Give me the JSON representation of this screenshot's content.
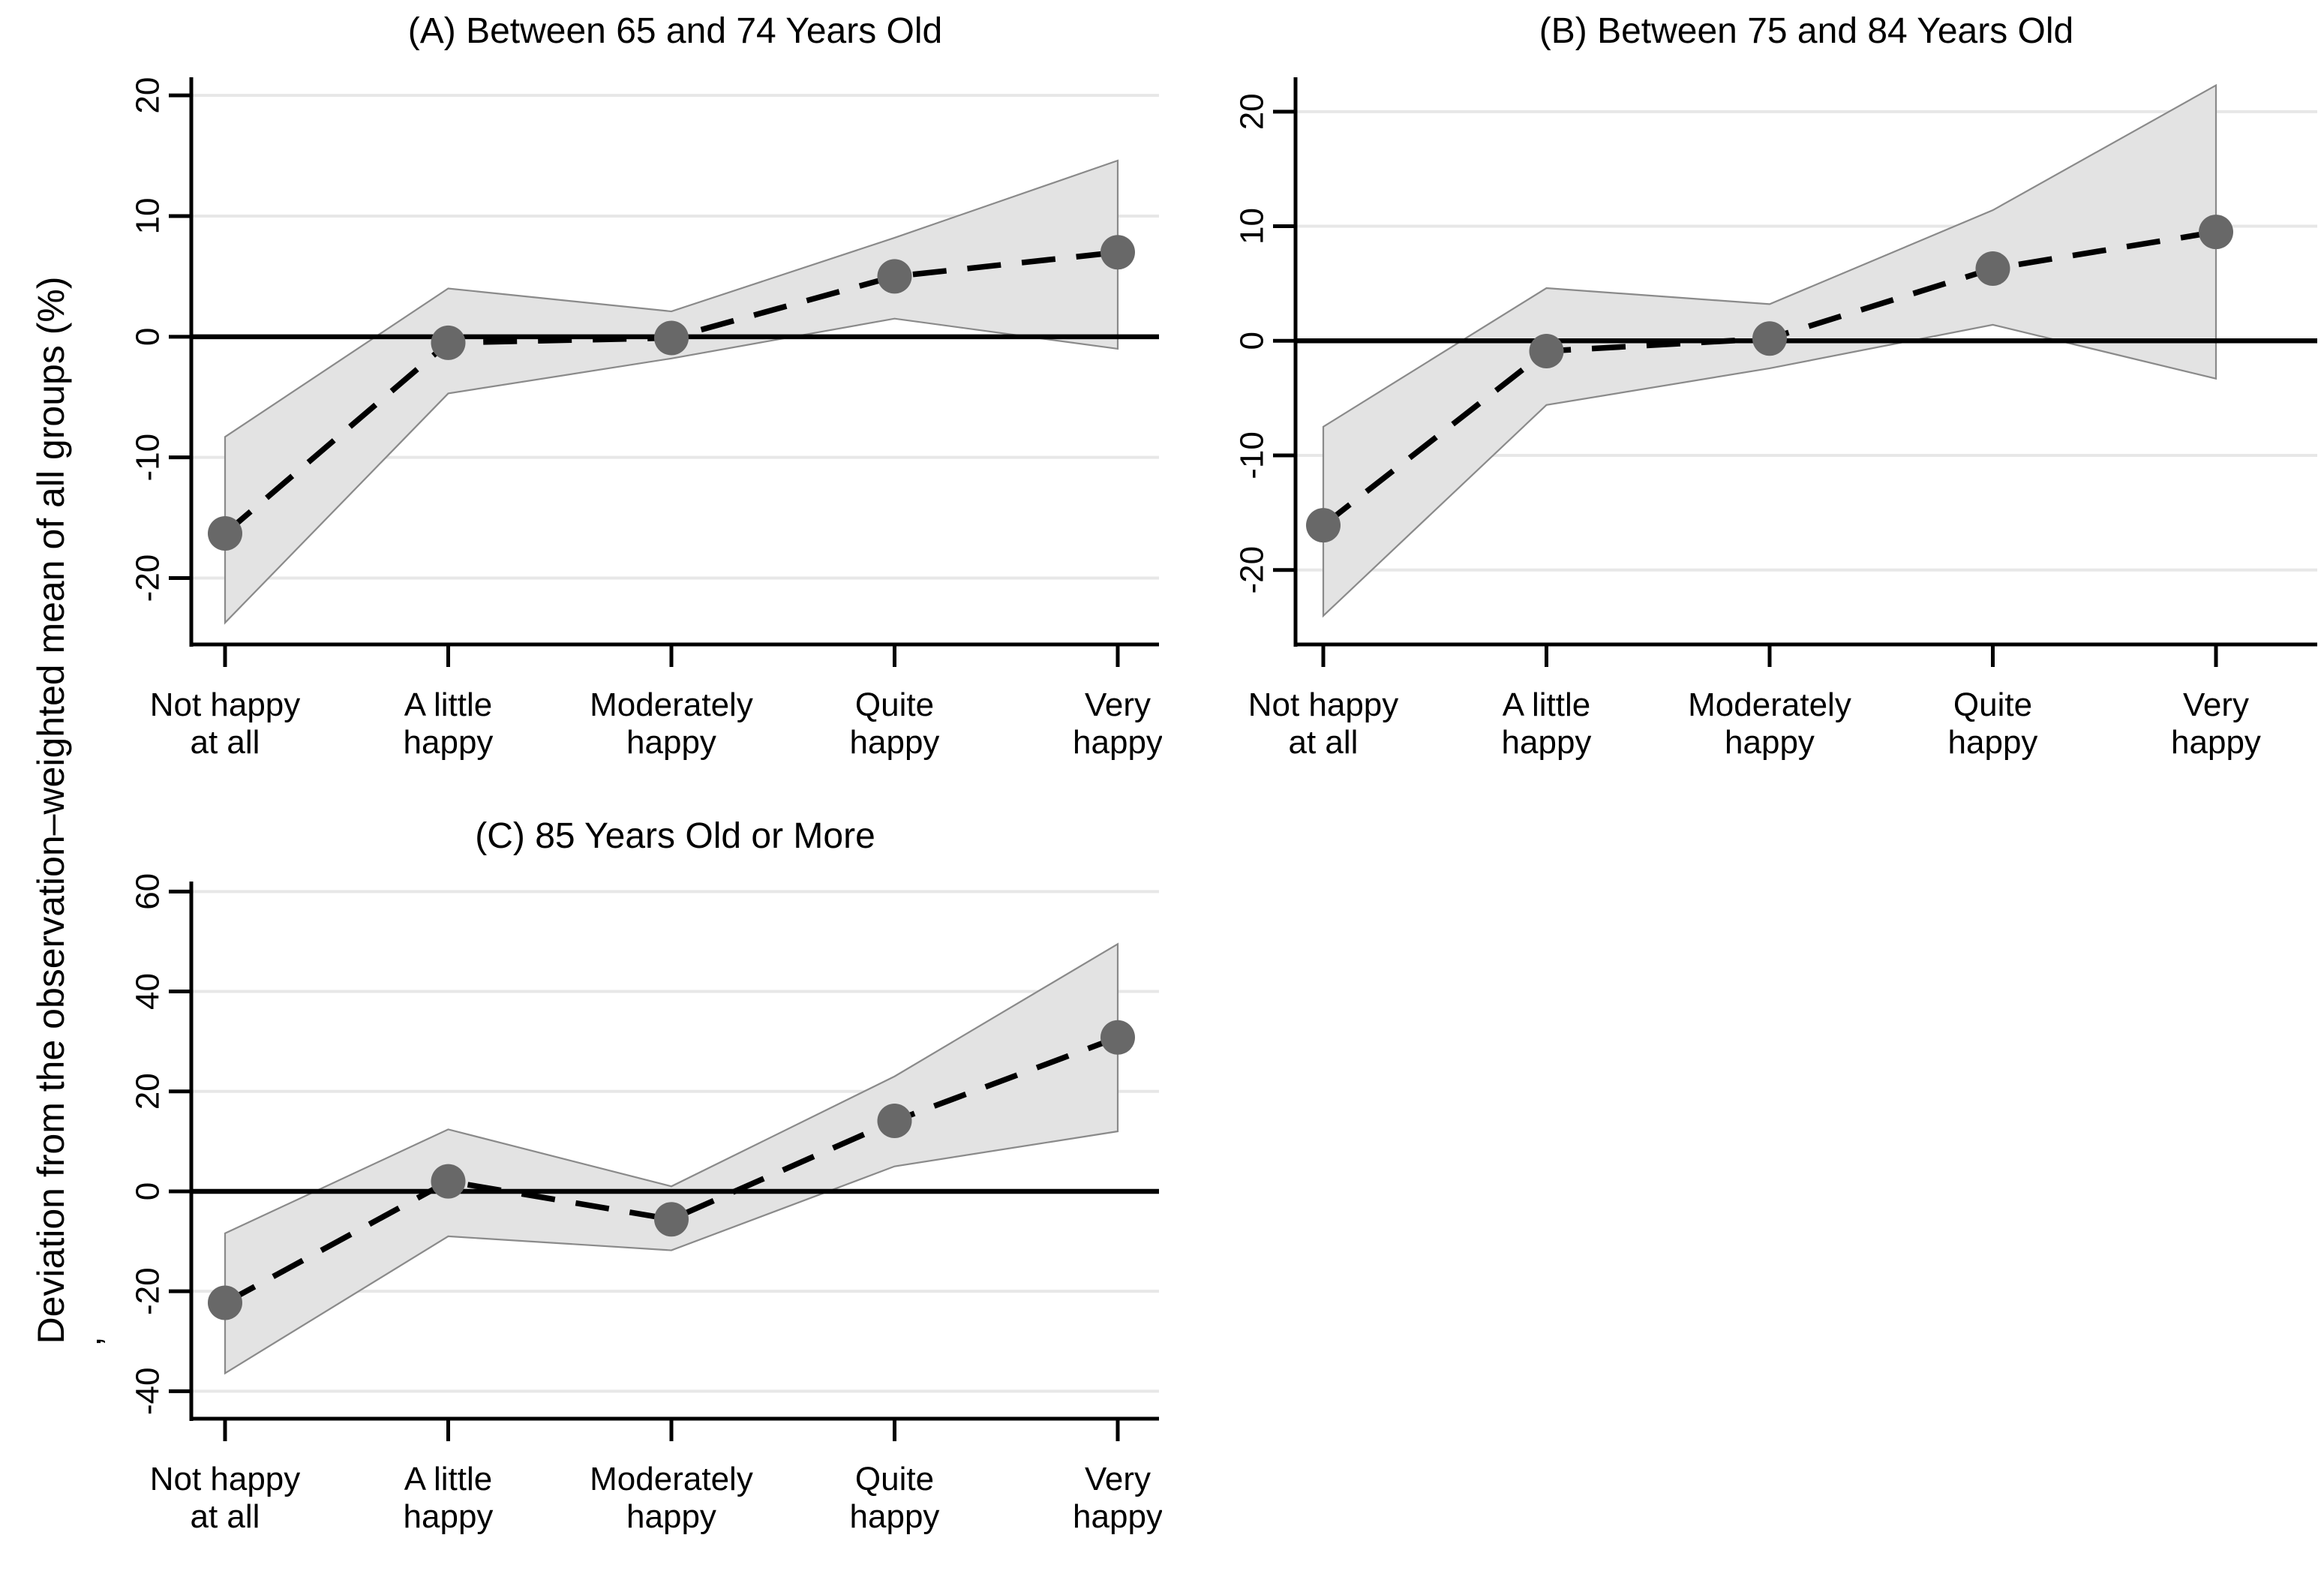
{
  "figure": {
    "y_axis_label": "Deviation from the observation–weighted mean of all groups (%)",
    "y_axis_label_artifact": ",",
    "colors": {
      "band_fill": "#e3e3e3",
      "band_edge": "#8a8a8a",
      "marker": "#686868",
      "dashed_line": "#000000",
      "zero_line": "#000000",
      "gridline": "#e7e7e7",
      "axis": "#000000"
    }
  },
  "chart_data": [
    {
      "type": "line",
      "panel_label": "A",
      "title": "(A) Between 65 and 74 Years Old",
      "categories": [
        "Not happy\nat all",
        "A little\nhappy",
        "Moderately\nhappy",
        "Quite\nhappy",
        "Very\nhappy"
      ],
      "series": [
        {
          "name": "deviation",
          "values": [
            -16.3,
            -0.5,
            -0.1,
            5.0,
            7.0
          ]
        },
        {
          "name": "ci_lower",
          "values": [
            -23.7,
            -4.7,
            -1.8,
            1.5,
            -1.0
          ]
        },
        {
          "name": "ci_upper",
          "values": [
            -8.3,
            4.0,
            2.1,
            8.2,
            14.6
          ]
        }
      ],
      "yticks": [
        -20,
        -10,
        0,
        10,
        20
      ],
      "ylim": [
        -25.5,
        21.5
      ],
      "ref_line": 0,
      "grid": true,
      "line_style": "dashed",
      "marker": "circle",
      "band": true,
      "legend": "none"
    },
    {
      "type": "line",
      "panel_label": "B",
      "title": "(B) Between 75 and 84 Years Old",
      "categories": [
        "Not happy\nat all",
        "A little\nhappy",
        "Moderately\nhappy",
        "Quite\nhappy",
        "Very\nhappy"
      ],
      "series": [
        {
          "name": "deviation",
          "values": [
            -16.1,
            -0.9,
            0.2,
            6.3,
            9.5
          ]
        },
        {
          "name": "ci_lower",
          "values": [
            -24.0,
            -5.6,
            -2.4,
            1.4,
            -3.3
          ]
        },
        {
          "name": "ci_upper",
          "values": [
            -7.5,
            4.6,
            3.2,
            11.4,
            22.3
          ]
        }
      ],
      "yticks": [
        -20,
        -10,
        0,
        10,
        20
      ],
      "ylim": [
        -26.5,
        23.0
      ],
      "ref_line": 0,
      "grid": true,
      "line_style": "dashed",
      "marker": "circle",
      "band": true,
      "legend": "none"
    },
    {
      "type": "line",
      "panel_label": "C",
      "title": "(C) 85 Years Old or More",
      "categories": [
        "Not happy\nat all",
        "A little\nhappy",
        "Moderately\nhappy",
        "Quite\nhappy",
        "Very\nhappy"
      ],
      "series": [
        {
          "name": "deviation",
          "values": [
            -22.3,
            2.0,
            -5.6,
            14.1,
            30.8
          ]
        },
        {
          "name": "ci_lower",
          "values": [
            -36.4,
            -9.0,
            -11.8,
            5.0,
            12.0
          ]
        },
        {
          "name": "ci_upper",
          "values": [
            -8.4,
            12.4,
            1.0,
            23.0,
            49.5
          ]
        }
      ],
      "yticks": [
        -40,
        -20,
        0,
        20,
        40,
        60
      ],
      "ylim": [
        -45.5,
        62.0
      ],
      "ref_line": 0,
      "grid": true,
      "line_style": "dashed",
      "marker": "circle",
      "band": true,
      "legend": "none"
    }
  ]
}
